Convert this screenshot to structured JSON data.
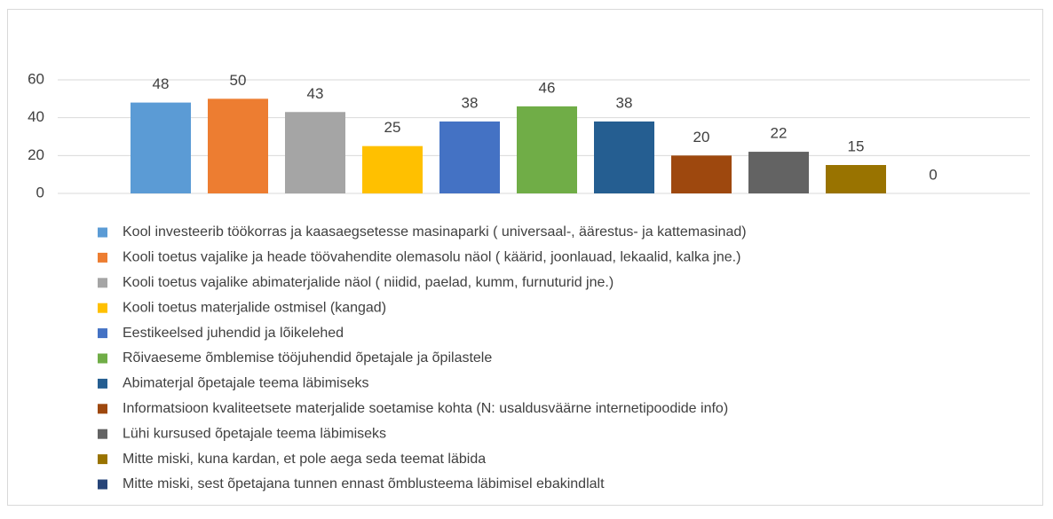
{
  "chart_data": {
    "type": "bar",
    "categories": [
      null
    ],
    "ylim": [
      0,
      60
    ],
    "yticks": [
      0,
      20,
      40,
      60
    ],
    "grid": true,
    "legend": "bottom",
    "series": [
      {
        "name": "Kool investeerib töökorras ja kaasaegsetesse masinaparki ( universaal-, äärestus- ja kattemasinad)",
        "color": "#5b9bd5",
        "values": [
          48
        ]
      },
      {
        "name": "Kooli toetus vajalike ja heade töövahendite olemasolu näol ( käärid, joonlauad, lekaalid, kalka jne.)",
        "color": "#ed7d31",
        "values": [
          50
        ]
      },
      {
        "name": "Kooli toetus vajalike abimaterjalide näol ( niidid, paelad, kumm, furnuturid jne.)",
        "color": "#a5a5a5",
        "values": [
          43
        ]
      },
      {
        "name": "Kooli toetus materjalide ostmisel (kangad)",
        "color": "#ffc000",
        "values": [
          25
        ]
      },
      {
        "name": "Eestikeelsed juhendid ja lõikelehed",
        "color": "#4472c4",
        "values": [
          38
        ]
      },
      {
        "name": "Rõivaeseme õmblemise tööjuhendid õpetajale ja õpilastele",
        "color": "#70ad47",
        "values": [
          46
        ]
      },
      {
        "name": "Abimaterjal õpetajale teema läbimiseks",
        "color": "#255e91",
        "values": [
          38
        ]
      },
      {
        "name": "Informatsioon kvaliteetsete materjalide soetamise kohta (N: usaldusväärne internetipoodide info)",
        "color": "#9e480e",
        "values": [
          20
        ]
      },
      {
        "name": "Lühi kursused õpetajale teema läbimiseks",
        "color": "#636363",
        "values": [
          22
        ]
      },
      {
        "name": "Mitte miski, kuna kardan, et pole aega seda teemat läbida",
        "color": "#997300",
        "values": [
          15
        ]
      },
      {
        "name": "Mitte miski, sest õpetajana tunnen ennast õmblusteema läbimisel ebakindlalt",
        "color": "#264478",
        "values": [
          0
        ]
      }
    ]
  }
}
